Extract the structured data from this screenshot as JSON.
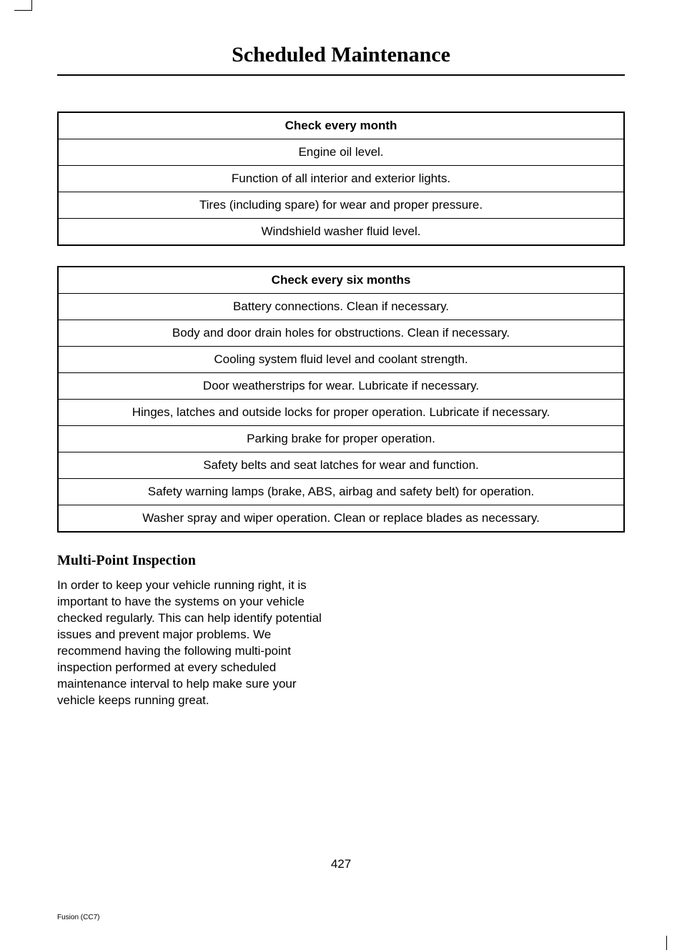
{
  "page": {
    "title": "Scheduled Maintenance",
    "page_number": "427",
    "footer": "Fusion (CC7)"
  },
  "table_month": {
    "header": "Check every month",
    "rows": [
      "Engine oil level.",
      "Function of all interior and exterior lights.",
      "Tires (including spare) for wear and proper pressure.",
      "Windshield washer fluid level."
    ]
  },
  "table_six_months": {
    "header": "Check every six months",
    "rows": [
      "Battery connections. Clean if necessary.",
      "Body and door drain holes for obstructions. Clean if necessary.",
      "Cooling system fluid level and coolant strength.",
      "Door weatherstrips for wear. Lubricate if necessary.",
      "Hinges, latches and outside locks for proper operation. Lubricate if necessary.",
      "Parking brake for proper operation.",
      "Safety belts and seat latches for wear and function.",
      "Safety warning lamps (brake, ABS, airbag and safety belt) for operation.",
      "Washer spray and wiper operation. Clean or replace blades as necessary."
    ]
  },
  "section": {
    "heading": "Multi-Point Inspection",
    "body": "In order to keep your vehicle running right, it is important to have the systems on your vehicle checked regularly. This can help identify potential issues and prevent major problems. We recommend having the following multi-point inspection performed at every scheduled maintenance interval to help make sure your vehicle keeps running great."
  },
  "style": {
    "background_color": "#ffffff",
    "text_color": "#000000",
    "title_fontsize": 30,
    "table_header_fontsize": 17,
    "table_cell_fontsize": 17,
    "section_heading_fontsize": 20,
    "body_fontsize": 17,
    "page_number_fontsize": 17,
    "footer_fontsize": 10,
    "border_color": "#000000",
    "table_border_width": 2,
    "row_border_width": 1
  }
}
